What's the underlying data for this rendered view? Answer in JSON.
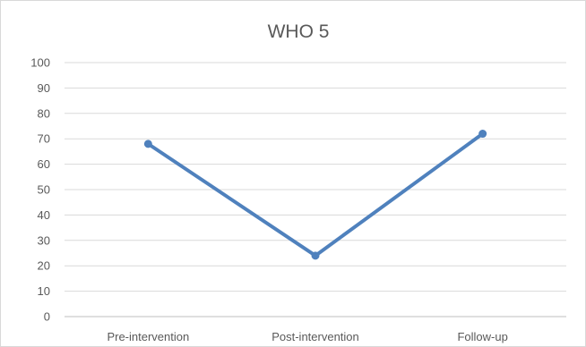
{
  "chart_data": {
    "type": "line",
    "title": "WHO 5",
    "categories": [
      "Pre-intervention",
      "Post-intervention",
      "Follow-up"
    ],
    "series": [
      {
        "values": [
          68,
          24,
          72
        ],
        "color": "#4f81bd"
      }
    ],
    "yticks": [
      "0",
      "10",
      "20",
      "30",
      "40",
      "50",
      "60",
      "70",
      "80",
      "90",
      "100"
    ],
    "ylim": [
      0,
      100
    ],
    "grid": true,
    "legend": "none"
  }
}
